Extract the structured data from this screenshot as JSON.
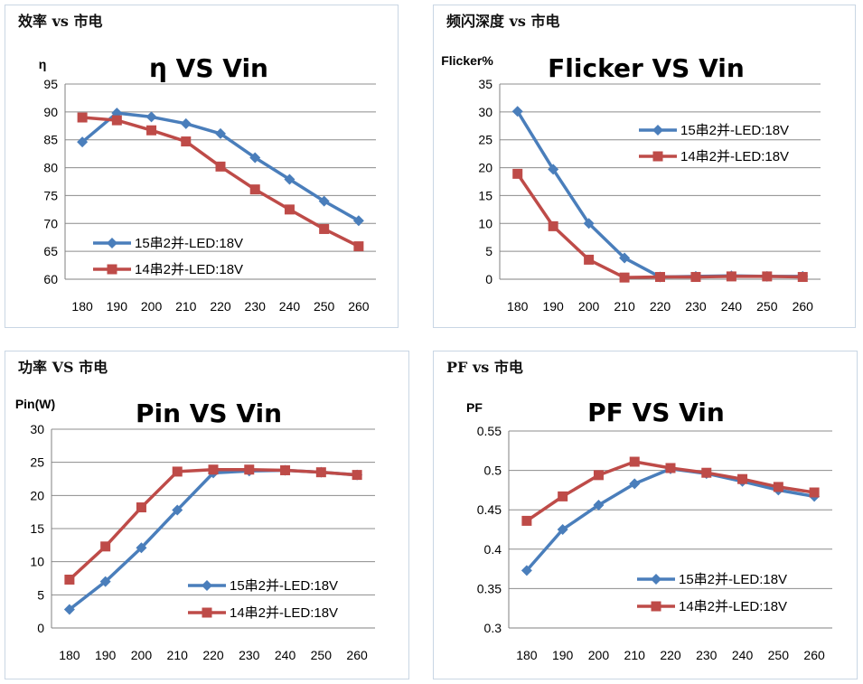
{
  "colors": {
    "series1": "#4a7ebb",
    "series2": "#be4b48",
    "grid": "#8c8c8c",
    "axis": "#808080"
  },
  "chart_data": [
    {
      "type": "line",
      "panel_title": "效率 vs 市电",
      "title": "η  VS Vin",
      "ylabel": "η",
      "x": [
        180,
        190,
        200,
        210,
        220,
        230,
        240,
        250,
        260
      ],
      "yticks": [
        60,
        65,
        70,
        75,
        80,
        85,
        90,
        95
      ],
      "ylim": [
        60,
        95
      ],
      "grid": true,
      "legend_position": "bottom-left",
      "series": [
        {
          "name": "15串2并-LED:18V",
          "values": [
            84.6,
            89.8,
            89.1,
            87.9,
            86.1,
            81.8,
            77.9,
            74.0,
            70.5
          ]
        },
        {
          "name": "14串2并-LED:18V",
          "values": [
            89.0,
            88.5,
            86.7,
            84.7,
            80.2,
            76.1,
            72.5,
            69.0,
            65.9
          ]
        }
      ]
    },
    {
      "type": "line",
      "panel_title": "频闪深度 vs 市电",
      "title": "Flicker VS Vin",
      "ylabel": "Flicker%",
      "x": [
        180,
        190,
        200,
        210,
        220,
        230,
        240,
        250,
        260
      ],
      "yticks": [
        0,
        5,
        10,
        15,
        20,
        25,
        30,
        35
      ],
      "ylim": [
        0,
        35
      ],
      "grid": true,
      "legend_position": "top-right",
      "series": [
        {
          "name": "15串2并-LED:18V",
          "values": [
            30.1,
            19.7,
            10.0,
            3.8,
            0.4,
            0.5,
            0.6,
            0.5,
            0.5
          ]
        },
        {
          "name": "14串2并-LED:18V",
          "values": [
            18.9,
            9.5,
            3.5,
            0.3,
            0.4,
            0.4,
            0.5,
            0.5,
            0.4
          ]
        }
      ]
    },
    {
      "type": "line",
      "panel_title": "功率 VS 市电",
      "title": "Pin VS Vin",
      "ylabel": "Pin(W)",
      "x": [
        180,
        190,
        200,
        210,
        220,
        230,
        240,
        250,
        260
      ],
      "yticks": [
        0,
        5,
        10,
        15,
        20,
        25,
        30
      ],
      "ylim": [
        0,
        30
      ],
      "grid": true,
      "legend_position": "bottom-right",
      "series": [
        {
          "name": "15串2并-LED:18V",
          "values": [
            2.8,
            7.0,
            12.1,
            17.8,
            23.4,
            23.7,
            23.8,
            23.5,
            23.1
          ]
        },
        {
          "name": "14串2并-LED:18V",
          "values": [
            7.3,
            12.3,
            18.2,
            23.6,
            23.9,
            23.9,
            23.8,
            23.5,
            23.1
          ]
        }
      ]
    },
    {
      "type": "line",
      "panel_title": "PF vs 市电",
      "title": "PF VS Vin",
      "ylabel": "PF",
      "x": [
        180,
        190,
        200,
        210,
        220,
        230,
        240,
        250,
        260
      ],
      "yticks": [
        0.3,
        0.35,
        0.4,
        0.45,
        0.5,
        0.55
      ],
      "ylim": [
        0.3,
        0.55
      ],
      "grid": true,
      "legend_position": "bottom-right",
      "series": [
        {
          "name": "15串2并-LED:18V",
          "values": [
            0.373,
            0.425,
            0.456,
            0.483,
            0.502,
            0.496,
            0.486,
            0.475,
            0.467
          ]
        },
        {
          "name": "14串2并-LED:18V",
          "values": [
            0.436,
            0.467,
            0.494,
            0.511,
            0.503,
            0.497,
            0.489,
            0.479,
            0.472
          ]
        }
      ]
    }
  ]
}
